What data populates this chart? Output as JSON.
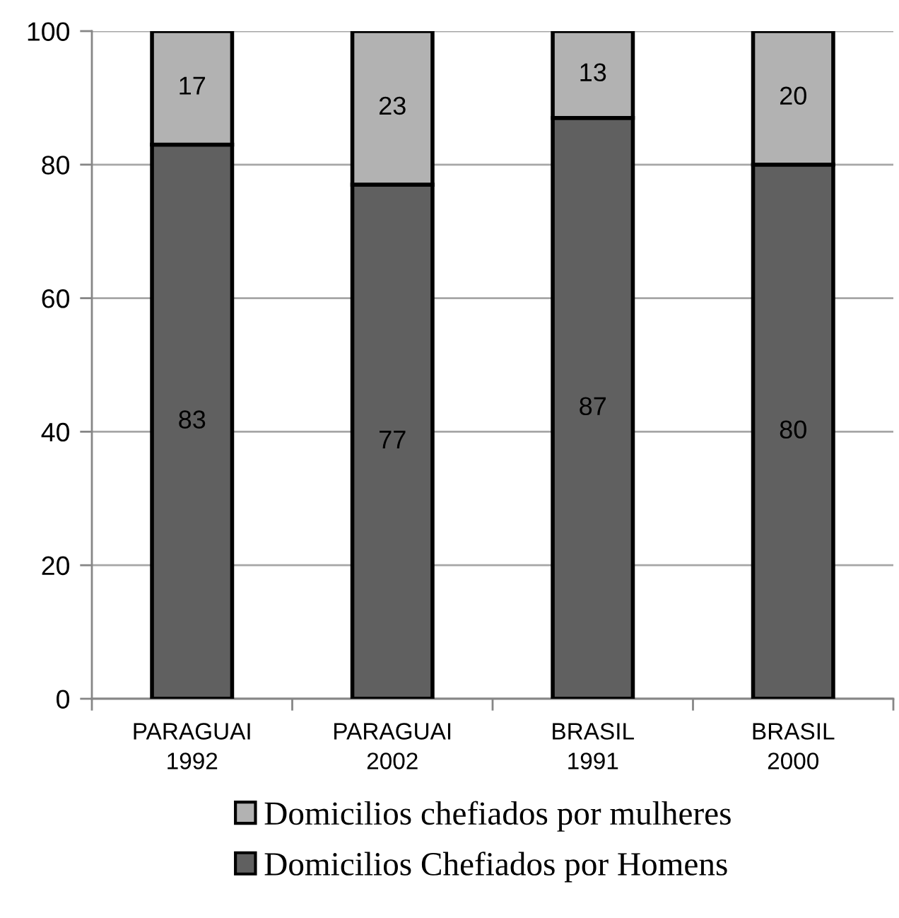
{
  "chart_data": {
    "type": "bar",
    "stacked": true,
    "categories": [
      "PARAGUAI\n1992",
      "PARAGUAI\n2002",
      "BRASIL\n1991",
      "BRASIL\n2000"
    ],
    "series": [
      {
        "name": "Domicilios Chefiados por Homens",
        "color": "#606060",
        "values": [
          83,
          77,
          87,
          80
        ]
      },
      {
        "name": "Domicilios chefiados por mulheres",
        "color": "#b2b2b2",
        "values": [
          17,
          23,
          13,
          20
        ]
      }
    ],
    "ylim": [
      0,
      100
    ],
    "yticks": [
      0,
      20,
      40,
      60,
      80,
      100
    ],
    "grid": "y",
    "legend": "bottom",
    "data_labels": true
  }
}
